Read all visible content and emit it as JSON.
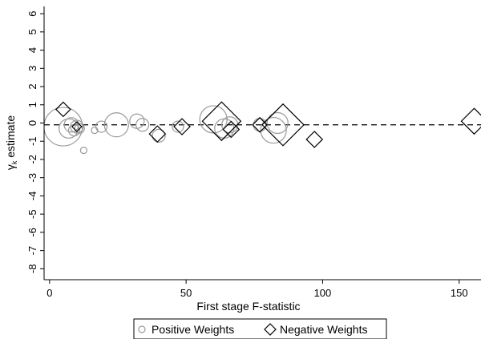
{
  "chart_data": {
    "type": "scatter",
    "xlabel": "First stage F-statistic",
    "ylabel": "γ",
    "ylabel_subscript": "k",
    "ylabel_suffix": " estimate",
    "xlim": [
      -2,
      158
    ],
    "ylim": [
      -8.6,
      6.4
    ],
    "xticks": [
      0,
      50,
      100,
      150
    ],
    "yticks": [
      6,
      5,
      4,
      3,
      2,
      1,
      0,
      -1,
      -2,
      -3,
      -4,
      -5,
      -6,
      -7,
      -8
    ],
    "reference_line": {
      "y": -0.1,
      "style": "dashed"
    },
    "grid": false,
    "legend_position": "bottom",
    "series": [
      {
        "name": "Positive Weights",
        "marker": "circle",
        "color": "#9a9a9a",
        "points": [
          {
            "x": 5,
            "y": -0.2,
            "size": 24
          },
          {
            "x": 7,
            "y": -0.3,
            "size": 12
          },
          {
            "x": 8,
            "y": -0.1,
            "size": 9
          },
          {
            "x": 9,
            "y": -0.4,
            "size": 7
          },
          {
            "x": 10,
            "y": -0.2,
            "size": 8
          },
          {
            "x": 11,
            "y": -0.3,
            "size": 6
          },
          {
            "x": 12.5,
            "y": -1.5,
            "size": 4
          },
          {
            "x": 16.5,
            "y": -0.4,
            "size": 4
          },
          {
            "x": 19,
            "y": -0.2,
            "size": 7
          },
          {
            "x": 24.5,
            "y": -0.1,
            "size": 15
          },
          {
            "x": 32,
            "y": 0.1,
            "size": 9
          },
          {
            "x": 34,
            "y": -0.1,
            "size": 8
          },
          {
            "x": 40,
            "y": -0.7,
            "size": 8
          },
          {
            "x": 47,
            "y": -0.2,
            "size": 7
          },
          {
            "x": 60,
            "y": 0.2,
            "size": 17
          },
          {
            "x": 64,
            "y": -0.3,
            "size": 12
          },
          {
            "x": 66,
            "y": -0.1,
            "size": 10
          },
          {
            "x": 77,
            "y": -0.1,
            "size": 8
          },
          {
            "x": 82,
            "y": -0.4,
            "size": 16
          },
          {
            "x": 83.5,
            "y": 0.0,
            "size": 13
          }
        ]
      },
      {
        "name": "Negative Weights",
        "marker": "diamond",
        "color": "#000000",
        "points": [
          {
            "x": 5,
            "y": 0.75,
            "size": 9
          },
          {
            "x": 10,
            "y": -0.2,
            "size": 6
          },
          {
            "x": 39.5,
            "y": -0.6,
            "size": 10
          },
          {
            "x": 48.5,
            "y": -0.2,
            "size": 10
          },
          {
            "x": 63,
            "y": 0.1,
            "size": 24
          },
          {
            "x": 66.5,
            "y": -0.35,
            "size": 10
          },
          {
            "x": 77,
            "y": -0.1,
            "size": 9
          },
          {
            "x": 85.5,
            "y": -0.1,
            "size": 26
          },
          {
            "x": 97,
            "y": -0.9,
            "size": 10
          },
          {
            "x": 155.5,
            "y": 0.1,
            "size": 16
          }
        ]
      }
    ]
  }
}
